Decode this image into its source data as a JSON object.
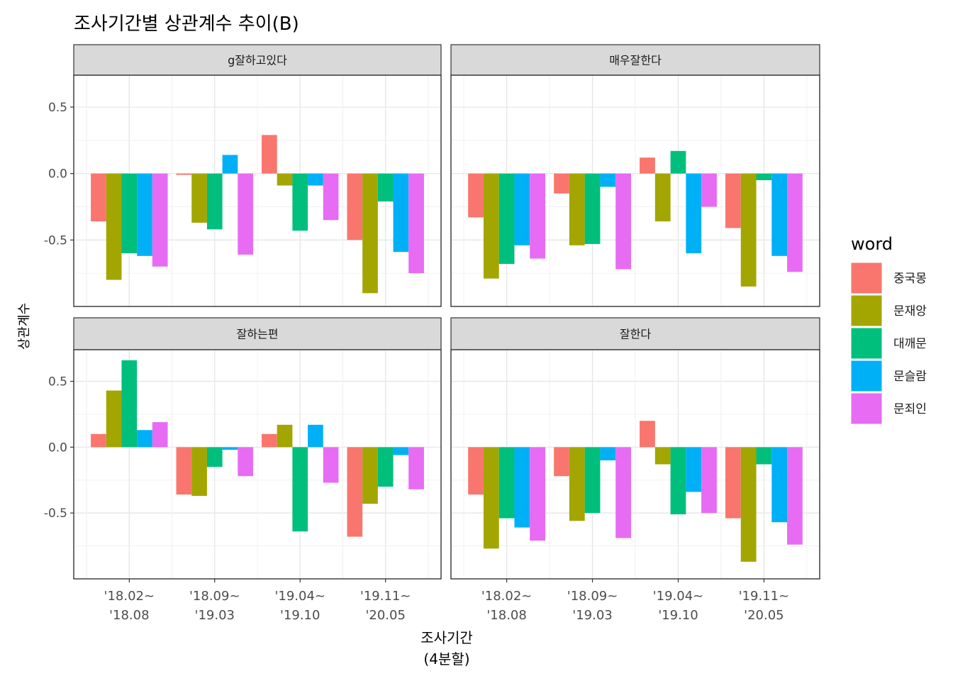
{
  "title": "조사기간별 상관계수 추이(B)",
  "xlabel": "조사기간\n(4분할)",
  "ylabel": "상관계수",
  "legend": {
    "title": "word",
    "items": [
      {
        "label": "중국몽",
        "color": "#F8766D"
      },
      {
        "label": "문재앙",
        "color": "#A3A500"
      },
      {
        "label": "대깨문",
        "color": "#00BF7D"
      },
      {
        "label": "문슬람",
        "color": "#00B0F6"
      },
      {
        "label": "문죄인",
        "color": "#E76BF3"
      }
    ]
  },
  "y_ticks": [
    "0.5",
    "0.0",
    "-0.5"
  ],
  "x_ticks": [
    "'18.02~\n'18.08",
    "'18.09~\n'19.03",
    "'19.04~\n'19.10",
    "'19.11~\n'20.05"
  ],
  "chart_data": {
    "type": "bar",
    "title": "조사기간별 상관계수 추이(B)",
    "xlabel": "조사기간\n(4분할)",
    "ylabel": "상관계수",
    "ylim": [
      -1.0,
      0.74
    ],
    "legend_position": "right",
    "grid": true,
    "categories": [
      "'18.02~\n'18.08",
      "'18.09~\n'19.03",
      "'19.04~\n'19.10",
      "'19.11~\n'20.05"
    ],
    "panels": [
      {
        "facet": "g잘하고있다",
        "series": [
          {
            "name": "중국몽",
            "values": [
              -0.36,
              -0.01,
              0.29,
              -0.5
            ]
          },
          {
            "name": "문재앙",
            "values": [
              -0.8,
              -0.37,
              -0.09,
              -0.9
            ]
          },
          {
            "name": "대깨문",
            "values": [
              -0.6,
              -0.42,
              -0.43,
              -0.21
            ]
          },
          {
            "name": "문슬람",
            "values": [
              -0.62,
              0.14,
              -0.09,
              -0.59
            ]
          },
          {
            "name": "문죄인",
            "values": [
              -0.7,
              -0.61,
              -0.35,
              -0.75
            ]
          }
        ]
      },
      {
        "facet": "매우잘한다",
        "series": [
          {
            "name": "중국몽",
            "values": [
              -0.33,
              -0.15,
              0.12,
              -0.41
            ]
          },
          {
            "name": "문재앙",
            "values": [
              -0.79,
              -0.54,
              -0.36,
              -0.85
            ]
          },
          {
            "name": "대깨문",
            "values": [
              -0.68,
              -0.53,
              0.17,
              -0.05
            ]
          },
          {
            "name": "문슬람",
            "values": [
              -0.54,
              -0.1,
              -0.6,
              -0.62
            ]
          },
          {
            "name": "문죄인",
            "values": [
              -0.64,
              -0.72,
              -0.25,
              -0.74
            ]
          }
        ]
      },
      {
        "facet": "잘하는편",
        "series": [
          {
            "name": "중국몽",
            "values": [
              0.1,
              -0.36,
              0.1,
              -0.68
            ]
          },
          {
            "name": "문재앙",
            "values": [
              0.43,
              -0.37,
              0.17,
              -0.43
            ]
          },
          {
            "name": "대깨문",
            "values": [
              0.66,
              -0.15,
              -0.64,
              -0.3
            ]
          },
          {
            "name": "문슬람",
            "values": [
              0.13,
              -0.02,
              0.17,
              -0.06
            ]
          },
          {
            "name": "문죄인",
            "values": [
              0.19,
              -0.22,
              -0.27,
              -0.32
            ]
          }
        ]
      },
      {
        "facet": "잘한다",
        "series": [
          {
            "name": "중국몽",
            "values": [
              -0.36,
              -0.22,
              0.2,
              -0.54
            ]
          },
          {
            "name": "문재앙",
            "values": [
              -0.77,
              -0.56,
              -0.13,
              -0.87
            ]
          },
          {
            "name": "대깨문",
            "values": [
              -0.54,
              -0.5,
              -0.51,
              -0.13
            ]
          },
          {
            "name": "문슬람",
            "values": [
              -0.61,
              -0.1,
              -0.34,
              -0.57
            ]
          },
          {
            "name": "문죄인",
            "values": [
              -0.71,
              -0.69,
              -0.5,
              -0.74
            ]
          }
        ]
      }
    ]
  }
}
